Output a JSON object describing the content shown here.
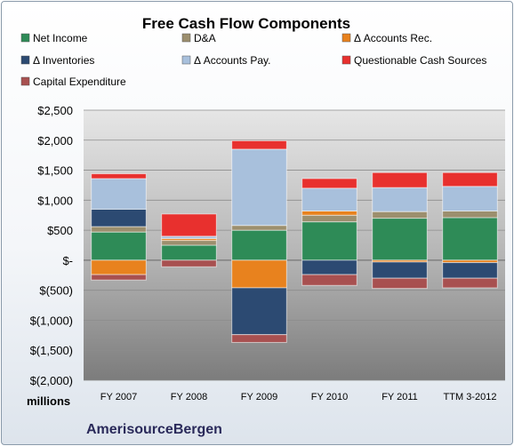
{
  "chart_data": {
    "type": "bar",
    "stacked": true,
    "title": "Free Cash Flow Components",
    "unit_label": "millions",
    "company": "AmerisourceBergen",
    "categories": [
      "FY 2007",
      "FY 2008",
      "FY 2009",
      "FY 2010",
      "FY 2011",
      "TTM 3-2012"
    ],
    "ylim": [
      -2000,
      2500
    ],
    "yticks": [
      2500,
      2000,
      1500,
      1000,
      500,
      0,
      -500,
      -1000,
      -1500,
      -2000
    ],
    "ytick_labels": [
      "$2,500",
      "$2,000",
      "$1,500",
      "$1,000",
      "$500",
      "$-",
      "$(500)",
      "$(1,000)",
      "$(1,500)",
      "$(2,000)"
    ],
    "grid": true,
    "legend_position": "top",
    "series": [
      {
        "name": "Net Income",
        "color": "#2e8b57",
        "values": [
          470,
          250,
          500,
          640,
          700,
          710
        ]
      },
      {
        "name": "D&A",
        "color": "#9c8f6e",
        "values": [
          90,
          80,
          80,
          110,
          110,
          110
        ]
      },
      {
        "name": "Δ Accounts Rec.",
        "color": "#e8821e",
        "values": [
          -240,
          30,
          -460,
          70,
          -30,
          -40
        ]
      },
      {
        "name": "Δ Inventories",
        "color": "#2c4a72",
        "values": [
          290,
          0,
          -780,
          -240,
          -270,
          -260
        ]
      },
      {
        "name": "Δ Accounts Pay.",
        "color": "#a8c0dc",
        "values": [
          510,
          40,
          1270,
          380,
          400,
          410
        ]
      },
      {
        "name": "Questionable Cash Sources",
        "color": "#e8302e",
        "values": [
          80,
          370,
          140,
          160,
          250,
          230
        ]
      },
      {
        "name": "Capital Expenditure",
        "color": "#a85050",
        "values": [
          -90,
          -110,
          -130,
          -180,
          -170,
          -160
        ]
      }
    ]
  }
}
